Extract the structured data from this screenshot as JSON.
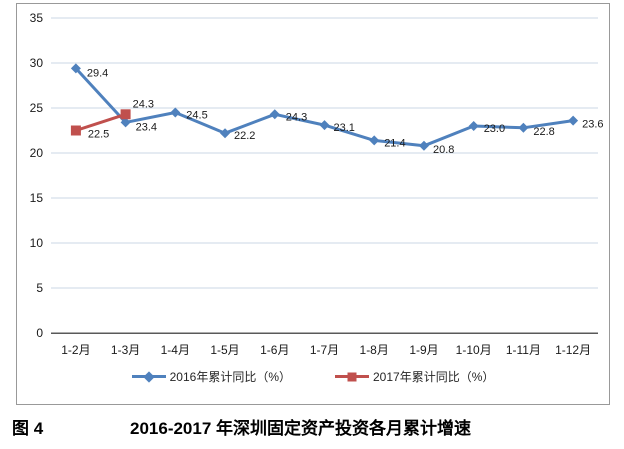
{
  "figure": {
    "caption_label": "图 4",
    "caption_title": "2016-2017 年深圳固定资产投资各月累计增速"
  },
  "chart_data": {
    "type": "line",
    "title": "",
    "xlabel": "",
    "ylabel": "",
    "categories": [
      "1-2月",
      "1-3月",
      "1-4月",
      "1-5月",
      "1-6月",
      "1-7月",
      "1-8月",
      "1-9月",
      "1-10月",
      "1-11月",
      "1-12月"
    ],
    "series": [
      {
        "name": "2016年累计同比（%）",
        "color": "#4F81BD",
        "marker": "diamond",
        "values": [
          29.4,
          23.4,
          24.5,
          22.2,
          24.3,
          23.1,
          21.4,
          20.8,
          23.0,
          22.8,
          23.6
        ],
        "labels": [
          "29.4",
          "23.4",
          "24.5",
          "22.2",
          "24.3",
          "23.1",
          "21.4",
          "20.8",
          "23.0",
          "22.8",
          "23.6"
        ],
        "label_offsets": [
          [
            11,
            8
          ],
          [
            10,
            8
          ],
          [
            11,
            6
          ],
          [
            9,
            6
          ],
          [
            11,
            6
          ],
          [
            9,
            6
          ],
          [
            10,
            6
          ],
          [
            9,
            7
          ],
          [
            10,
            6
          ],
          [
            10,
            7
          ],
          [
            9,
            7
          ]
        ]
      },
      {
        "name": "2017年累计同比（%）",
        "color": "#C0504D",
        "marker": "square",
        "values": [
          22.5,
          24.3
        ],
        "labels": [
          "22.5",
          "24.3"
        ],
        "label_offsets": [
          [
            12,
            7
          ],
          [
            7,
            -7
          ]
        ]
      }
    ],
    "ylim": [
      0,
      35
    ],
    "ytick_step": 5,
    "grid": true,
    "legend_position": "bottom",
    "colors": {
      "gridline": "#CBD7E6",
      "axis_line": "#595959",
      "frame_border": "#999999",
      "tick_text": "#1a1a1a",
      "data_label_text": "#1a1a1a"
    }
  }
}
